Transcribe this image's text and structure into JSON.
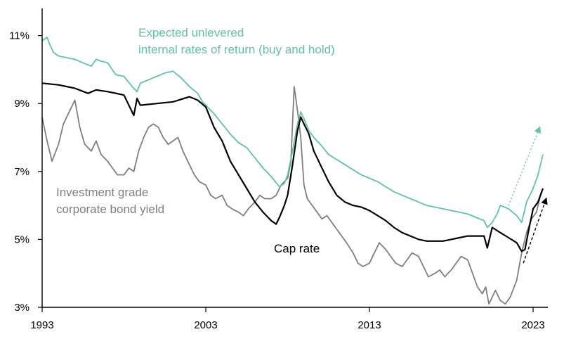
{
  "chart_data": {
    "type": "line",
    "title": "",
    "xlabel": "",
    "ylabel": "",
    "xlim": [
      1993,
      2023.9
    ],
    "ylim": [
      3,
      11.8
    ],
    "x_ticks": [
      1993,
      2003,
      2013,
      2023
    ],
    "x_tick_labels": [
      "1993",
      "2003",
      "2013",
      "2023"
    ],
    "y_ticks": [
      3,
      5,
      7,
      9,
      11
    ],
    "y_tick_labels": [
      "3%",
      "5%",
      "7%",
      "9%",
      "11%"
    ],
    "grid": false,
    "series": [
      {
        "name": "Expected unlevered internal rates of return (buy and hold)",
        "color": "#5cc5a0",
        "annotation": [
          "Expected unlevered",
          "internal rates of return (buy and hold)"
        ],
        "x": [
          1993.0,
          1993.3,
          1993.5,
          1993.7,
          1994.0,
          1994.5,
          1995.0,
          1995.5,
          1996.0,
          1996.3,
          1996.6,
          1997.0,
          1997.5,
          1998.0,
          1998.5,
          1998.8,
          1999.0,
          1999.5,
          2000.0,
          2000.5,
          2001.0,
          2001.5,
          2002.0,
          2002.5,
          2002.8,
          2003.0,
          2003.5,
          2004.0,
          2004.5,
          2005.0,
          2005.5,
          2006.0,
          2006.5,
          2007.0,
          2007.5,
          2007.8,
          2008.0,
          2008.3,
          2008.6,
          2008.8,
          2009.0,
          2009.3,
          2009.6,
          2010.0,
          2010.5,
          2011.0,
          2011.5,
          2012.0,
          2012.5,
          2013.0,
          2013.5,
          2014.0,
          2014.5,
          2015.0,
          2015.5,
          2016.0,
          2016.5,
          2017.0,
          2017.5,
          2018.0,
          2018.5,
          2019.0,
          2019.5,
          2020.0,
          2020.2,
          2020.5,
          2020.8,
          2021.0,
          2021.5,
          2022.0,
          2022.3,
          2022.6,
          2023.0,
          2023.3,
          2023.6
        ],
        "values": [
          10.85,
          10.95,
          10.7,
          10.5,
          10.4,
          10.35,
          10.3,
          10.2,
          10.1,
          10.3,
          10.25,
          10.2,
          9.85,
          9.8,
          9.5,
          9.35,
          9.6,
          9.7,
          9.8,
          9.9,
          9.95,
          9.75,
          9.5,
          9.3,
          9.05,
          8.95,
          8.7,
          8.4,
          8.1,
          7.85,
          7.7,
          7.4,
          7.1,
          6.85,
          6.55,
          6.65,
          6.9,
          7.6,
          8.4,
          8.75,
          8.55,
          8.2,
          8.0,
          7.8,
          7.5,
          7.35,
          7.2,
          7.05,
          6.9,
          6.8,
          6.7,
          6.55,
          6.4,
          6.3,
          6.2,
          6.1,
          6.0,
          5.95,
          5.9,
          5.85,
          5.8,
          5.75,
          5.65,
          5.55,
          5.35,
          5.5,
          5.75,
          6.0,
          5.9,
          5.7,
          5.5,
          6.1,
          6.5,
          6.9,
          7.5
        ],
        "trend_arrow": {
          "from": [
            2021.5,
            6.0
          ],
          "to": [
            2023.4,
            8.3
          ],
          "style": "dotted"
        }
      },
      {
        "name": "Cap rate",
        "color": "#000000",
        "annotation": [
          "Cap rate"
        ],
        "x": [
          1993.0,
          1994.0,
          1995.0,
          1995.8,
          1996.3,
          1997.0,
          1997.5,
          1998.0,
          1998.6,
          1998.8,
          1999.0,
          2000.0,
          2001.0,
          2002.0,
          2002.5,
          2003.0,
          2003.5,
          2004.0,
          2004.5,
          2005.0,
          2005.5,
          2006.0,
          2006.5,
          2007.0,
          2007.3,
          2007.5,
          2007.8,
          2008.0,
          2008.3,
          2008.6,
          2008.8,
          2009.0,
          2009.3,
          2009.6,
          2010.0,
          2010.5,
          2011.0,
          2011.5,
          2012.0,
          2012.5,
          2013.0,
          2013.5,
          2014.0,
          2014.5,
          2015.0,
          2015.5,
          2016.0,
          2016.5,
          2017.0,
          2017.5,
          2018.0,
          2018.5,
          2019.0,
          2019.5,
          2020.0,
          2020.2,
          2020.5,
          2021.0,
          2021.5,
          2022.0,
          2022.3,
          2022.5,
          2022.7,
          2023.0,
          2023.3,
          2023.6
        ],
        "values": [
          9.6,
          9.55,
          9.45,
          9.3,
          9.4,
          9.35,
          9.3,
          9.25,
          8.65,
          9.15,
          8.95,
          9.0,
          9.05,
          9.2,
          9.1,
          8.9,
          8.3,
          7.9,
          7.3,
          6.9,
          6.5,
          6.1,
          5.8,
          5.55,
          5.45,
          5.65,
          6.0,
          6.3,
          7.2,
          8.2,
          8.6,
          8.4,
          8.1,
          7.6,
          7.2,
          6.7,
          6.3,
          6.1,
          6.0,
          5.95,
          5.85,
          5.7,
          5.55,
          5.35,
          5.2,
          5.1,
          5.0,
          4.95,
          4.95,
          4.95,
          5.0,
          5.05,
          5.1,
          5.1,
          5.1,
          4.75,
          5.35,
          5.2,
          5.05,
          4.9,
          4.65,
          4.7,
          5.2,
          5.9,
          6.1,
          6.5
        ],
        "trend_arrow": {
          "from": [
            2022.4,
            4.3
          ],
          "to": [
            2023.8,
            6.2
          ],
          "style": "dashed"
        }
      },
      {
        "name": "Investment grade corporate bond yield",
        "color": "#7f7f7f",
        "annotation": [
          "Investment grade",
          "corporate bond yield"
        ],
        "x": [
          1993.0,
          1993.3,
          1993.6,
          1994.0,
          1994.3,
          1994.6,
          1995.0,
          1995.3,
          1995.6,
          1996.0,
          1996.3,
          1996.6,
          1997.0,
          1997.3,
          1997.6,
          1998.0,
          1998.3,
          1998.6,
          1998.9,
          1999.2,
          1999.5,
          1999.8,
          2000.1,
          2000.4,
          2000.7,
          2001.0,
          2001.3,
          2001.6,
          2002.0,
          2002.3,
          2002.6,
          2003.0,
          2003.3,
          2003.6,
          2004.0,
          2004.3,
          2004.6,
          2005.0,
          2005.3,
          2005.6,
          2006.0,
          2006.3,
          2006.6,
          2007.0,
          2007.3,
          2007.6,
          2008.0,
          2008.2,
          2008.4,
          2008.6,
          2008.8,
          2009.0,
          2009.2,
          2009.5,
          2009.8,
          2010.1,
          2010.4,
          2010.7,
          2011.0,
          2011.3,
          2011.6,
          2012.0,
          2012.3,
          2012.6,
          2013.0,
          2013.3,
          2013.6,
          2014.0,
          2014.3,
          2014.6,
          2015.0,
          2015.3,
          2015.6,
          2016.0,
          2016.3,
          2016.6,
          2017.0,
          2017.3,
          2017.6,
          2018.0,
          2018.3,
          2018.6,
          2019.0,
          2019.3,
          2019.6,
          2019.9,
          2020.1,
          2020.3,
          2020.5,
          2020.7,
          2021.0,
          2021.3,
          2021.6,
          2022.0,
          2022.3,
          2022.6,
          2022.9,
          2023.2,
          2023.5
        ],
        "values": [
          8.6,
          7.9,
          7.3,
          7.8,
          8.4,
          8.7,
          9.1,
          8.3,
          7.8,
          7.6,
          7.9,
          7.5,
          7.3,
          7.1,
          6.9,
          6.9,
          7.1,
          7.0,
          7.6,
          8.0,
          8.3,
          8.4,
          8.3,
          8.0,
          7.8,
          7.9,
          8.0,
          7.6,
          7.2,
          6.9,
          6.7,
          6.6,
          6.3,
          6.2,
          6.3,
          6.0,
          5.9,
          5.8,
          5.7,
          5.9,
          6.1,
          6.3,
          6.2,
          6.2,
          6.3,
          6.6,
          6.8,
          7.3,
          9.5,
          8.8,
          8.0,
          6.6,
          6.2,
          6.0,
          5.8,
          5.6,
          5.7,
          5.5,
          5.3,
          5.1,
          4.9,
          4.6,
          4.3,
          4.2,
          4.3,
          4.6,
          4.9,
          4.7,
          4.5,
          4.3,
          4.2,
          4.4,
          4.6,
          4.5,
          4.2,
          3.9,
          4.0,
          4.1,
          3.9,
          4.1,
          4.3,
          4.5,
          4.4,
          4.0,
          3.6,
          3.4,
          3.6,
          3.1,
          3.3,
          3.5,
          3.2,
          3.1,
          3.3,
          3.8,
          4.6,
          5.2,
          5.6,
          5.8,
          6.4
        ]
      }
    ]
  }
}
